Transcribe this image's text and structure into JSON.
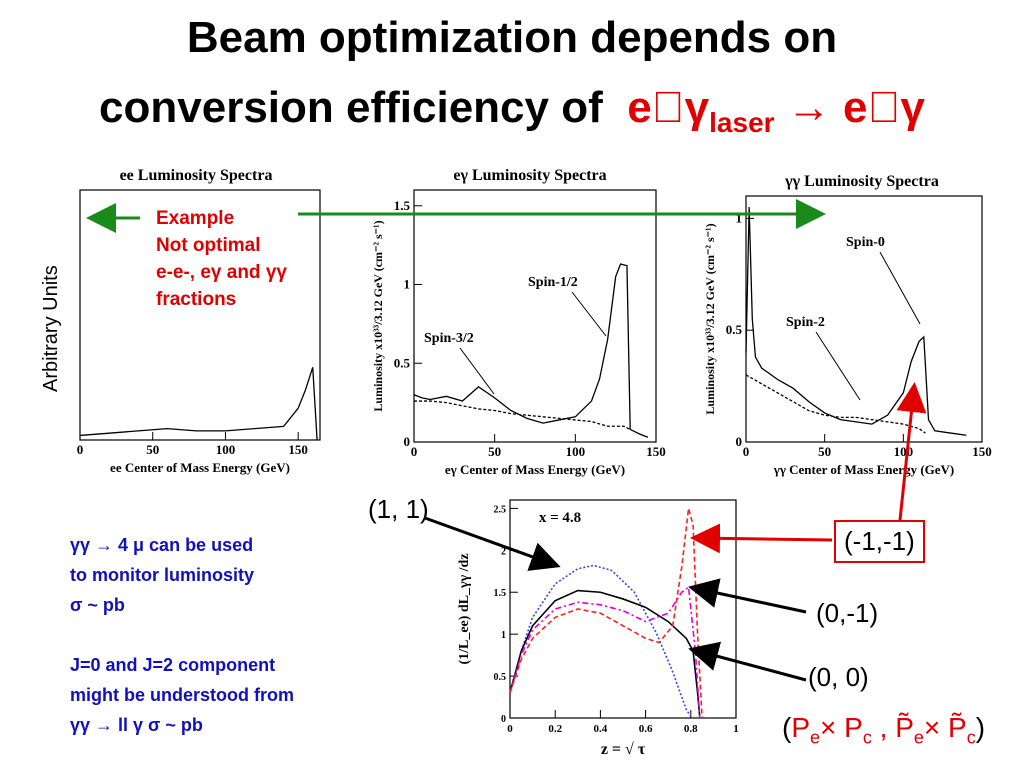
{
  "title": {
    "line1": "Beam optimization depends on",
    "line2_prefix": "conversion efficiency of",
    "line2_formula_a": "e\u0000γ",
    "line2_formula_sub": "laser",
    "line2_formula_b": "→ e\u0000γ"
  },
  "side_label": "Arbitrary Units",
  "example_note": [
    "Example",
    "Not optimal",
    "e-e-, eγ and γγ",
    "fractions"
  ],
  "blue_note": [
    "γγ → 4 μ can be used",
    "to monitor luminosity",
    "σ ~ pb",
    "",
    "J=0 and J=2 component",
    "might be understood from",
    "γγ →  ll γ     σ ~ pb"
  ],
  "pol_labels": {
    "p11": "(1, 1)",
    "pm1m1": "(-1,-1)",
    "p0m1": "(0,-1)",
    "p00": "(0, 0)"
  },
  "pol_formula": {
    "open": "(",
    "pe": "P",
    "e": "e",
    "x": "× P",
    "c": "c",
    "comma": " , ",
    "pe2": "P̃",
    "x2": "× P̃",
    "close": ")"
  },
  "chart_data": [
    {
      "type": "line",
      "title": "ee Luminosity Spectra",
      "xlabel": "ee Center of Mass Energy (GeV)",
      "ylabel": "",
      "xlim": [
        0,
        165
      ],
      "x_ticks": [
        "0",
        "50",
        "100",
        "150"
      ],
      "series": [
        {
          "x": [
            0,
            20,
            40,
            60,
            80,
            100,
            120,
            140,
            150,
            155,
            160,
            163
          ],
          "y": [
            0.02,
            0.03,
            0.04,
            0.05,
            0.04,
            0.04,
            0.05,
            0.06,
            0.14,
            0.22,
            0.32,
            0.0
          ]
        }
      ]
    },
    {
      "type": "line",
      "title": "eγ Luminosity Spectra",
      "xlabel": "eγ Center of Mass Energy (GeV)",
      "ylabel": "Luminosity x10³³/3.12 GeV (cm⁻² s⁻¹)",
      "xlim": [
        0,
        150
      ],
      "ylim": [
        0,
        1.6
      ],
      "x_ticks": [
        "0",
        "50",
        "100",
        "150"
      ],
      "y_ticks": [
        "0",
        "0.5",
        "1",
        "1.5"
      ],
      "annotations": [
        "Spin-3/2",
        "Spin-1/2"
      ],
      "series": [
        {
          "x": [
            0,
            5,
            10,
            20,
            30,
            40,
            50,
            60,
            70,
            80,
            90,
            100,
            110,
            115,
            120,
            125,
            128,
            132,
            134,
            140,
            145
          ],
          "y": [
            0.3,
            0.28,
            0.27,
            0.29,
            0.26,
            0.35,
            0.28,
            0.2,
            0.15,
            0.12,
            0.14,
            0.16,
            0.26,
            0.4,
            0.65,
            1.05,
            1.13,
            1.12,
            0.08,
            0.05,
            0.03
          ]
        },
        {
          "x": [
            0,
            10,
            20,
            30,
            40,
            50,
            60,
            70,
            80,
            90,
            100,
            110,
            120,
            130,
            134
          ],
          "y": [
            0.26,
            0.26,
            0.25,
            0.23,
            0.21,
            0.2,
            0.18,
            0.17,
            0.16,
            0.15,
            0.14,
            0.13,
            0.1,
            0.1,
            0.08
          ]
        }
      ]
    },
    {
      "type": "line",
      "title": "γγ Luminosity Spectra",
      "xlabel": "γγ Center of Mass Energy (GeV)",
      "ylabel": "Luminosity x10³³/3.12 GeV (cm⁻² s⁻¹)",
      "xlim": [
        0,
        150
      ],
      "ylim": [
        0,
        1.1
      ],
      "x_ticks": [
        "0",
        "50",
        "100",
        "150"
      ],
      "y_ticks": [
        "0",
        "0.5",
        "1"
      ],
      "annotations": [
        "Spin-0",
        "Spin-2"
      ],
      "series": [
        {
          "x": [
            0,
            2,
            4,
            6,
            10,
            20,
            30,
            40,
            50,
            60,
            70,
            80,
            90,
            100,
            105,
            110,
            113,
            116,
            120,
            130,
            140
          ],
          "y": [
            0.4,
            1.05,
            0.55,
            0.38,
            0.33,
            0.28,
            0.24,
            0.18,
            0.13,
            0.1,
            0.09,
            0.08,
            0.12,
            0.22,
            0.36,
            0.45,
            0.47,
            0.1,
            0.05,
            0.04,
            0.03
          ]
        },
        {
          "x": [
            0,
            10,
            20,
            30,
            40,
            50,
            60,
            70,
            80,
            90,
            100,
            110,
            114
          ],
          "y": [
            0.3,
            0.26,
            0.22,
            0.18,
            0.14,
            0.12,
            0.11,
            0.11,
            0.1,
            0.09,
            0.08,
            0.06,
            0.04
          ]
        }
      ]
    },
    {
      "type": "line",
      "title": "x = 4.8",
      "xlabel": "z = √ τ",
      "ylabel": "(1/L_ee) dL_γγ /dz",
      "xlim": [
        0,
        1
      ],
      "ylim": [
        0,
        2.6
      ],
      "x_ticks": [
        "0",
        "0.2",
        "0.4",
        "0.6",
        "0.8",
        "1"
      ],
      "y_ticks": [
        "0",
        "0.5",
        "1",
        "1.5",
        "2",
        "2.5"
      ],
      "series": [
        {
          "name": "(1, 1)",
          "color": "#4040ff",
          "dash": "dotted",
          "x": [
            0,
            0.05,
            0.1,
            0.2,
            0.3,
            0.37,
            0.45,
            0.55,
            0.65,
            0.72,
            0.76,
            0.78,
            0.8
          ],
          "y": [
            0.3,
            0.8,
            1.2,
            1.6,
            1.78,
            1.82,
            1.76,
            1.5,
            1.0,
            0.55,
            0.25,
            0.1,
            0.02
          ]
        },
        {
          "name": "(0, 0)",
          "color": "#000000",
          "dash": "solid",
          "x": [
            0,
            0.05,
            0.1,
            0.2,
            0.3,
            0.4,
            0.5,
            0.6,
            0.7,
            0.78,
            0.81,
            0.83,
            0.84
          ],
          "y": [
            0.3,
            0.8,
            1.1,
            1.4,
            1.52,
            1.5,
            1.42,
            1.32,
            1.15,
            0.95,
            0.8,
            0.3,
            0.0
          ]
        },
        {
          "name": "(0,-1)",
          "color": "#e000e0",
          "dash": "dashdot",
          "x": [
            0,
            0.05,
            0.1,
            0.2,
            0.3,
            0.4,
            0.5,
            0.6,
            0.7,
            0.76,
            0.79,
            0.82,
            0.84
          ],
          "y": [
            0.3,
            0.75,
            1.05,
            1.3,
            1.38,
            1.35,
            1.28,
            1.15,
            1.25,
            1.5,
            1.56,
            0.8,
            0.0
          ]
        },
        {
          "name": "(-1,-1)",
          "color": "#ff2020",
          "dash": "dashed",
          "x": [
            0,
            0.05,
            0.1,
            0.2,
            0.3,
            0.4,
            0.5,
            0.6,
            0.66,
            0.72,
            0.76,
            0.79,
            0.81,
            0.83,
            0.85
          ],
          "y": [
            0.3,
            0.7,
            0.95,
            1.2,
            1.3,
            1.25,
            1.1,
            0.95,
            0.9,
            1.1,
            1.8,
            2.5,
            2.3,
            1.0,
            0.0
          ]
        }
      ]
    }
  ]
}
